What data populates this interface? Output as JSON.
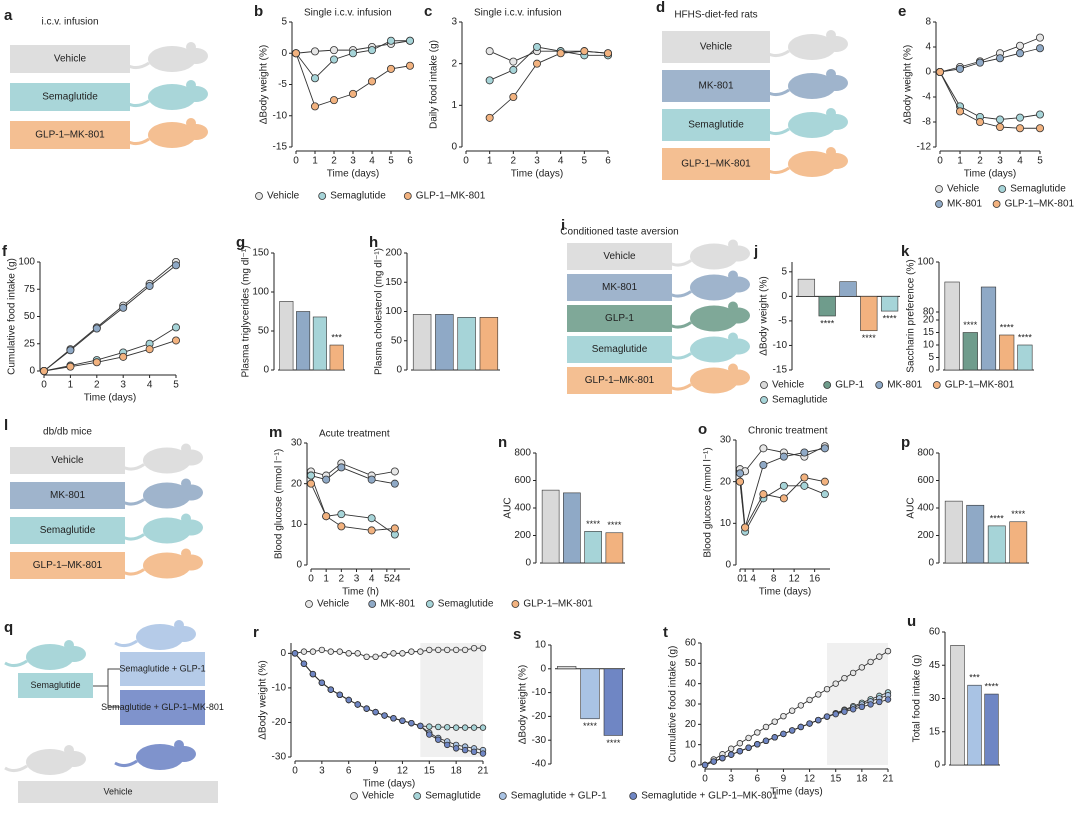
{
  "chart_data": [
    {
      "panel": "b",
      "type": "line",
      "title": "Single i.c.v. infusion",
      "xlabel": "Time (days)",
      "ylabel": "ΔBody weight (%)",
      "x": [
        0,
        1,
        2,
        3,
        4,
        5,
        6
      ],
      "xlim": [
        0,
        6
      ],
      "xticks": [
        0,
        1,
        2,
        3,
        4,
        5,
        6
      ],
      "ylim": [
        -15,
        5
      ],
      "yticks": [
        -15,
        -10,
        -5,
        0,
        5
      ],
      "series": [
        {
          "name": "Vehicle",
          "color": "#e6e6e6",
          "values": [
            0,
            0.3,
            0.5,
            0.5,
            1,
            1.5,
            2
          ]
        },
        {
          "name": "Semaglutide",
          "color": "#a6d4d8",
          "values": [
            0,
            -4,
            -1,
            0,
            0.5,
            2,
            2
          ]
        },
        {
          "name": "GLP-1–MK-801",
          "color": "#f2b27f",
          "values": [
            0,
            -8.5,
            -7.5,
            -6.5,
            -4.5,
            -2.5,
            -2
          ]
        }
      ]
    },
    {
      "panel": "c",
      "type": "line",
      "title": "Single i.c.v. infusion",
      "xlabel": "Time (days)",
      "ylabel": "Daily food intake (g)",
      "legend": true,
      "x": [
        1,
        2,
        3,
        4,
        5,
        6
      ],
      "xlim": [
        0,
        6
      ],
      "xticks": [
        0,
        1,
        2,
        3,
        4,
        5,
        6
      ],
      "ylim": [
        0,
        3
      ],
      "yticks": [
        0,
        1,
        2,
        3
      ],
      "series": [
        {
          "name": "Vehicle",
          "color": "#e6e6e6",
          "values": [
            2.3,
            2.05,
            2.3,
            2.3,
            2.3,
            2.25
          ]
        },
        {
          "name": "Semaglutide",
          "color": "#a6d4d8",
          "values": [
            1.6,
            1.85,
            2.4,
            2.3,
            2.2,
            2.2
          ]
        },
        {
          "name": "GLP-1–MK-801",
          "color": "#f2b27f",
          "values": [
            0.7,
            1.2,
            2.0,
            2.25,
            2.3,
            2.25
          ]
        }
      ]
    },
    {
      "panel": "e",
      "type": "line",
      "xlabel": "Time (days)",
      "ylabel": "ΔBody weight (%)",
      "legend": true,
      "x": [
        0,
        1,
        2,
        3,
        4,
        5
      ],
      "xlim": [
        0,
        5
      ],
      "xticks": [
        0,
        1,
        2,
        3,
        4,
        5
      ],
      "ylim": [
        -12,
        8
      ],
      "yticks": [
        -12,
        -8,
        -4,
        0,
        4,
        8
      ],
      "series": [
        {
          "name": "Vehicle",
          "color": "#e6e6e6",
          "values": [
            0,
            0.8,
            1.7,
            3,
            4.2,
            5.5
          ]
        },
        {
          "name": "Semaglutide",
          "color": "#a6d4d8",
          "values": [
            0,
            -5.5,
            -7.2,
            -7.6,
            -7.3,
            -6.8
          ]
        },
        {
          "name": "MK-801",
          "color": "#8fa9c6",
          "values": [
            0,
            0.5,
            1.5,
            2.2,
            3,
            3.8
          ]
        },
        {
          "name": "GLP-1–MK-801",
          "color": "#f2b27f",
          "values": [
            0,
            -6.3,
            -8,
            -8.8,
            -9,
            -9
          ]
        }
      ]
    },
    {
      "panel": "f",
      "type": "line",
      "xlabel": "Time (days)",
      "ylabel": "Cumulative food intake (g)",
      "x": [
        0,
        1,
        2,
        3,
        4,
        5
      ],
      "xlim": [
        0,
        5
      ],
      "xticks": [
        0,
        1,
        2,
        3,
        4,
        5
      ],
      "ylim": [
        0,
        100
      ],
      "yticks": [
        0,
        25,
        50,
        75,
        100
      ],
      "series": [
        {
          "name": "Vehicle",
          "color": "#e6e6e6",
          "values": [
            0,
            20,
            40,
            60,
            80,
            100
          ]
        },
        {
          "name": "MK-801",
          "color": "#8fa9c6",
          "values": [
            0,
            19,
            39,
            58,
            78,
            97
          ]
        },
        {
          "name": "Semaglutide",
          "color": "#a6d4d8",
          "values": [
            0,
            5,
            10,
            17,
            25,
            40
          ]
        },
        {
          "name": "GLP-1–MK-801",
          "color": "#f2b27f",
          "values": [
            0,
            4,
            8,
            13,
            20,
            28
          ]
        }
      ]
    },
    {
      "panel": "g",
      "type": "bar",
      "ylabel": "Plasma triglycerides (mg dl⁻¹)",
      "ylim": [
        0,
        150
      ],
      "yticks": [
        0,
        50,
        100,
        150
      ],
      "values": [
        88,
        75,
        68,
        32
      ],
      "colors": [
        "#d9d9d9",
        "#8fa9c6",
        "#a6d4d8",
        "#f2b27f"
      ],
      "marks": [
        null,
        null,
        null,
        "***"
      ]
    },
    {
      "panel": "h",
      "type": "bar",
      "ylabel": "Plasma cholesterol (mg dl⁻¹)",
      "ylim": [
        0,
        200
      ],
      "yticks": [
        0,
        50,
        100,
        150,
        200
      ],
      "values": [
        95,
        95,
        90,
        90
      ],
      "colors": [
        "#d9d9d9",
        "#8fa9c6",
        "#a6d4d8",
        "#f2b27f"
      ]
    },
    {
      "panel": "j",
      "type": "bar",
      "ylabel": "ΔBody weight (%)",
      "ylim": [
        -15,
        7
      ],
      "yticks": [
        -15,
        -10,
        -5,
        0,
        5
      ],
      "legend": true,
      "categories": [
        "Vehicle",
        "GLP-1",
        "MK-801",
        "GLP-1–MK-801",
        "Semaglutide"
      ],
      "values": [
        3.5,
        -4,
        3,
        -7,
        -3
      ],
      "colors": [
        "#d9d9d9",
        "#6f9c8c",
        "#8fa9c6",
        "#f2b27f",
        "#a6d4d8"
      ],
      "marks": [
        null,
        "****",
        null,
        "****",
        "****"
      ]
    },
    {
      "panel": "k",
      "type": "bar",
      "ylabel": "Saccharin preference (%)",
      "ylim": [
        0,
        100
      ],
      "ybreak": [
        20,
        80
      ],
      "yticks": [
        0,
        5,
        10,
        15,
        20,
        80,
        100
      ],
      "values": [
        92,
        15,
        90,
        14,
        10
      ],
      "colors": [
        "#d9d9d9",
        "#6f9c8c",
        "#8fa9c6",
        "#f2b27f",
        "#a6d4d8"
      ],
      "marks": [
        null,
        "****",
        null,
        "****",
        "****"
      ]
    },
    {
      "panel": "m",
      "type": "line",
      "title": "Acute treatment",
      "xlabel": "Time (h)",
      "ylabel": "Blood glucose (mmol l⁻¹)",
      "legend": true,
      "x": [
        0,
        1,
        2,
        4,
        24
      ],
      "xlim": [
        0,
        25
      ],
      "xbreak": [
        5,
        24
      ],
      "xticks": [
        0,
        1,
        2,
        3,
        4,
        5,
        24
      ],
      "ylim": [
        0,
        30
      ],
      "yticks": [
        0,
        10,
        20,
        30
      ],
      "series": [
        {
          "name": "Vehicle",
          "color": "#e6e6e6",
          "values": [
            23,
            22,
            25,
            22,
            23
          ]
        },
        {
          "name": "MK-801",
          "color": "#8fa9c6",
          "values": [
            22,
            21,
            24,
            21,
            20
          ]
        },
        {
          "name": "Semaglutide",
          "color": "#a6d4d8",
          "values": [
            22,
            12,
            12.5,
            11.5,
            7.5
          ]
        },
        {
          "name": "GLP-1–MK-801",
          "color": "#f2b27f",
          "values": [
            20,
            12,
            9.5,
            8.5,
            9
          ]
        }
      ]
    },
    {
      "panel": "n",
      "type": "bar",
      "ylabel": "AUC",
      "ylim": [
        0,
        800
      ],
      "yticks": [
        0,
        200,
        400,
        600,
        800
      ],
      "values": [
        530,
        510,
        230,
        220
      ],
      "colors": [
        "#d9d9d9",
        "#8fa9c6",
        "#a6d4d8",
        "#f2b27f"
      ],
      "marks": [
        null,
        null,
        "****",
        "****"
      ]
    },
    {
      "panel": "o",
      "type": "line",
      "title": "Chronic treatment",
      "xlabel": "Time (days)",
      "ylabel": "Blood glucose (mmol l⁻¹)",
      "x": [
        0,
        1,
        6,
        10,
        14,
        18
      ],
      "xlim": [
        0,
        19
      ],
      "xbreak": [
        1,
        4
      ],
      "xticks": [
        0,
        1,
        4,
        8,
        12,
        16
      ],
      "ylim": [
        0,
        30
      ],
      "yticks": [
        0,
        10,
        20,
        30
      ],
      "series": [
        {
          "name": "Vehicle",
          "color": "#e6e6e6",
          "values": [
            23,
            22.5,
            28,
            27,
            26,
            28.5
          ]
        },
        {
          "name": "MK-801",
          "color": "#8fa9c6",
          "values": [
            22,
            9,
            24,
            26,
            27,
            28
          ]
        },
        {
          "name": "Semaglutide",
          "color": "#a6d4d8",
          "values": [
            20,
            8,
            16,
            19,
            19,
            17
          ]
        },
        {
          "name": "GLP-1–MK-801",
          "color": "#f2b27f",
          "values": [
            20,
            9,
            17,
            16,
            21,
            20
          ]
        }
      ]
    },
    {
      "panel": "p",
      "type": "bar",
      "ylabel": "AUC",
      "ylim": [
        0,
        800
      ],
      "yticks": [
        0,
        200,
        400,
        600,
        800
      ],
      "values": [
        450,
        420,
        270,
        300
      ],
      "colors": [
        "#d9d9d9",
        "#8fa9c6",
        "#a6d4d8",
        "#f2b27f"
      ],
      "marks": [
        null,
        null,
        "****",
        "****"
      ]
    },
    {
      "panel": "r",
      "type": "line",
      "xlabel": "Time (days)",
      "ylabel": "ΔBody weight (%)",
      "shade": [
        14,
        21
      ],
      "x": [
        0,
        1,
        2,
        3,
        4,
        5,
        6,
        7,
        8,
        9,
        10,
        11,
        12,
        13,
        14,
        15,
        16,
        17,
        18,
        19,
        20,
        21
      ],
      "xlim": [
        0,
        21
      ],
      "xticks": [
        0,
        3,
        6,
        9,
        12,
        15,
        18,
        21
      ],
      "ylim": [
        -30,
        3
      ],
      "yticks": [
        -30,
        -20,
        -10,
        0
      ],
      "series": [
        {
          "name": "Vehicle",
          "color": "#e6e6e6",
          "values": [
            0,
            0.5,
            0.5,
            1,
            0.5,
            0.5,
            0,
            0,
            -1,
            -1,
            -0.5,
            0,
            0,
            0.5,
            0.5,
            1,
            1,
            1,
            1,
            1,
            1.5,
            1.5
          ]
        },
        {
          "name": "Semaglutide",
          "color": "#a6d4d8",
          "values": [
            0,
            -3,
            -6,
            -8.5,
            -10.5,
            -12,
            -13.5,
            -14.8,
            -16,
            -17,
            -18,
            -18.8,
            -19.5,
            -20.2,
            -21,
            -21.2,
            -21.3,
            -21.4,
            -21.5,
            -21.5,
            -21.5,
            -21.5
          ]
        },
        {
          "name": "Semaglutide + GLP-1",
          "color": "#a9c3e4",
          "values": [
            0,
            -3,
            -6,
            -8.5,
            -10.5,
            -12,
            -13.5,
            -14.8,
            -16,
            -17,
            -18,
            -18.8,
            -19.5,
            -20.2,
            -21,
            -23,
            -24.5,
            -25.5,
            -26.5,
            -27,
            -27.5,
            -28
          ]
        },
        {
          "name": "Semaglutide + GLP-1–MK-801",
          "color": "#6f86c4",
          "values": [
            0,
            -3,
            -6,
            -8.5,
            -10.5,
            -12,
            -13.5,
            -14.8,
            -16,
            -17,
            -18,
            -18.8,
            -19.5,
            -20.2,
            -21,
            -23.5,
            -25,
            -26.5,
            -27.5,
            -28,
            -28.5,
            -29
          ]
        }
      ]
    },
    {
      "panel": "s",
      "type": "bar",
      "ylabel": "ΔBody weight (%)",
      "ylim": [
        -40,
        10
      ],
      "yticks": [
        -40,
        -30,
        -20,
        -10,
        0,
        10
      ],
      "values": [
        1,
        -21,
        -28
      ],
      "colors": [
        "#d9d9d9",
        "#a9c3e4",
        "#6f86c4"
      ],
      "marks": [
        null,
        "****",
        "****"
      ]
    },
    {
      "panel": "t",
      "type": "line",
      "xlabel": "Time (days)",
      "ylabel": "Cumulative food intake (g)",
      "shade": [
        14,
        21
      ],
      "legend": true,
      "x": [
        0,
        1,
        2,
        3,
        4,
        5,
        6,
        7,
        8,
        9,
        10,
        11,
        12,
        13,
        14,
        15,
        16,
        17,
        18,
        19,
        20,
        21
      ],
      "xlim": [
        0,
        21
      ],
      "xticks": [
        0,
        3,
        6,
        9,
        12,
        15,
        18,
        21
      ],
      "ylim": [
        0,
        60
      ],
      "yticks": [
        0,
        10,
        20,
        30,
        40,
        50,
        60
      ],
      "series": [
        {
          "name": "Vehicle",
          "color": "#e6e6e6",
          "values": [
            0,
            2.7,
            5.3,
            8,
            10.7,
            13.3,
            16,
            18.7,
            21.3,
            24,
            26.7,
            29.3,
            32,
            34.7,
            37.3,
            40,
            42.7,
            45.3,
            48,
            50.7,
            53.3,
            56
          ]
        },
        {
          "name": "Semaglutide",
          "color": "#a6d4d8",
          "values": [
            0,
            1.7,
            3.4,
            5.1,
            6.8,
            8.5,
            10.2,
            11.9,
            13.6,
            15.3,
            17,
            18.7,
            20.4,
            22.1,
            23.8,
            25.5,
            27.2,
            28.9,
            30.6,
            32.3,
            34,
            35.7
          ]
        },
        {
          "name": "Semaglutide + GLP-1",
          "color": "#a9c3e4",
          "values": [
            0,
            1.7,
            3.4,
            5.1,
            6.8,
            8.5,
            10.2,
            11.9,
            13.6,
            15.3,
            17,
            18.7,
            20.4,
            22.1,
            23.8,
            25.3,
            26.8,
            28.3,
            29.8,
            31.3,
            32.8,
            34.3
          ]
        },
        {
          "name": "Semaglutide + GLP-1–MK-801",
          "color": "#6f86c4",
          "values": [
            0,
            1.7,
            3.4,
            5.1,
            6.8,
            8.5,
            10.2,
            11.9,
            13.6,
            15.3,
            17,
            18.7,
            20.4,
            22.1,
            23.8,
            25,
            26.2,
            27.4,
            28.6,
            29.8,
            31,
            32.2
          ]
        }
      ]
    },
    {
      "panel": "u",
      "type": "bar",
      "ylabel": "Total food intake (g)",
      "ylim": [
        0,
        60
      ],
      "yticks": [
        0,
        15,
        30,
        45,
        60
      ],
      "values": [
        54,
        36,
        32
      ],
      "colors": [
        "#d9d9d9",
        "#a9c3e4",
        "#6f86c4"
      ],
      "marks": [
        null,
        "***",
        "****"
      ]
    }
  ],
  "schemes": [
    {
      "panel": "a",
      "title": "i.c.v. infusion",
      "groups": [
        "Vehicle",
        "Semaglutide",
        "GLP-1–MK-801"
      ],
      "colors": [
        "#dedede",
        "#a9d6d9",
        "#f4bf92"
      ]
    },
    {
      "panel": "d",
      "title": "HFHS-diet-fed rats",
      "groups": [
        "Vehicle",
        "MK-801",
        "Semaglutide",
        "GLP-1–MK-801"
      ],
      "colors": [
        "#dedede",
        "#9fb4cc",
        "#a9d6d9",
        "#f4bf92"
      ]
    },
    {
      "panel": "i",
      "title": "Conditioned taste aversion",
      "groups": [
        "Vehicle",
        "MK-801",
        "GLP-1",
        "Semaglutide",
        "GLP-1–MK-801"
      ],
      "colors": [
        "#dedede",
        "#9fb4cc",
        "#7fa898",
        "#a9d6d9",
        "#f4bf92"
      ]
    },
    {
      "panel": "l",
      "title": "db/db mice",
      "groups": [
        "Vehicle",
        "MK-801",
        "Semaglutide",
        "GLP-1–MK-801"
      ],
      "colors": [
        "#dedede",
        "#9fb4cc",
        "#a9d6d9",
        "#f4bf92"
      ]
    },
    {
      "panel": "q",
      "groups": [
        "Semaglutide",
        "Semaglutide + GLP-1",
        "Semaglutide + GLP-1–MK-801",
        "Vehicle"
      ],
      "colors": [
        "#a9d6d9",
        "#b5cbe8",
        "#7f93cc",
        "#dedede"
      ]
    }
  ]
}
